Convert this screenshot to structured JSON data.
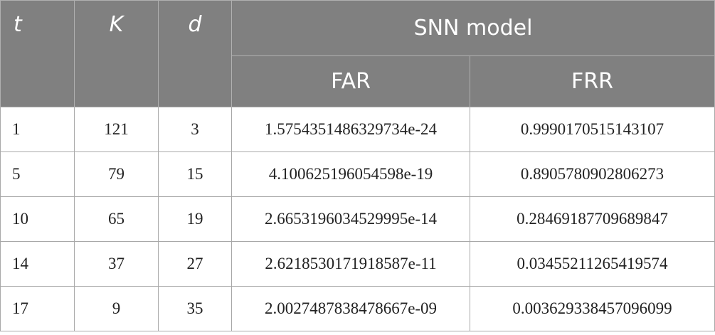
{
  "table": {
    "header": {
      "t": "t",
      "K": "K",
      "d": "d",
      "group": "SNN model",
      "far": "FAR",
      "frr": "FRR"
    },
    "rows": [
      [
        "1",
        "121",
        "3",
        "1.5754351486329734e-24",
        "0.9990170515143107"
      ],
      [
        "5",
        "79",
        "15",
        "4.100625196054598e-19",
        "0.8905780902806273"
      ],
      [
        "10",
        "65",
        "19",
        "2.6653196034529995e-14",
        "0.28469187709689847"
      ],
      [
        "14",
        "37",
        "27",
        "2.6218530171918587e-11",
        "0.03455211265419574"
      ],
      [
        "17",
        "9",
        "35",
        "2.0027487838478667e-09",
        "0.003629338457096099"
      ]
    ]
  }
}
